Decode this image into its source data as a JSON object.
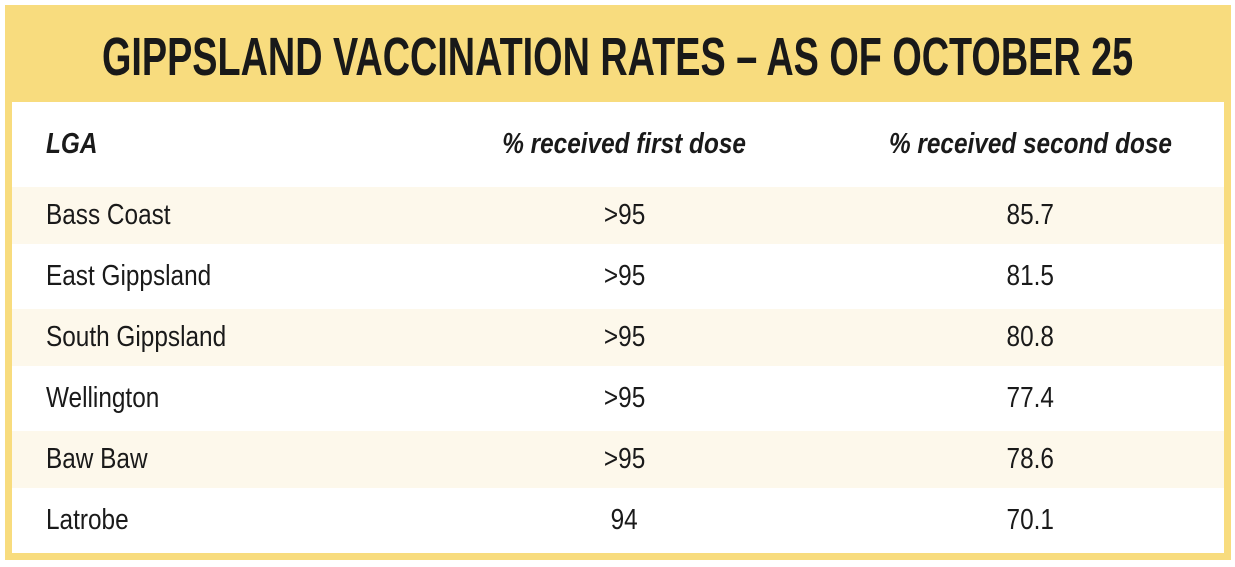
{
  "header": {
    "title": "GIPPSLAND VACCINATION RATES – AS OF OCTOBER 25"
  },
  "table": {
    "columns": [
      "LGA",
      "% received first dose",
      "% received second dose"
    ],
    "rows": [
      {
        "lga": "Bass Coast",
        "first_dose": ">95",
        "second_dose": "85.7"
      },
      {
        "lga": "East Gippsland",
        "first_dose": ">95",
        "second_dose": "81.5"
      },
      {
        "lga": "South Gippsland",
        "first_dose": ">95",
        "second_dose": "80.8"
      },
      {
        "lga": "Wellington",
        "first_dose": ">95",
        "second_dose": "77.4"
      },
      {
        "lga": "Baw Baw",
        "first_dose": ">95",
        "second_dose": "78.6"
      },
      {
        "lga": "Latrobe",
        "first_dose": "94",
        "second_dose": "70.1"
      }
    ]
  },
  "colors": {
    "accent_yellow": "#f8dc7e",
    "row_cream": "#fdf8eb",
    "row_white": "#ffffff",
    "text": "#1a1a1a"
  },
  "chart_data": {
    "type": "table",
    "title": "GIPPSLAND VACCINATION RATES – AS OF OCTOBER 25",
    "columns": [
      "LGA",
      "% received first dose",
      "% received second dose"
    ],
    "rows": [
      [
        "Bass Coast",
        ">95",
        85.7
      ],
      [
        "East Gippsland",
        ">95",
        81.5
      ],
      [
        "South Gippsland",
        ">95",
        80.8
      ],
      [
        "Wellington",
        ">95",
        77.4
      ],
      [
        "Baw Baw",
        ">95",
        78.6
      ],
      [
        "Latrobe",
        "94",
        70.1
      ]
    ],
    "notes": "Static infographic table; cream/white alternating rows; yellow header band and outer border"
  }
}
